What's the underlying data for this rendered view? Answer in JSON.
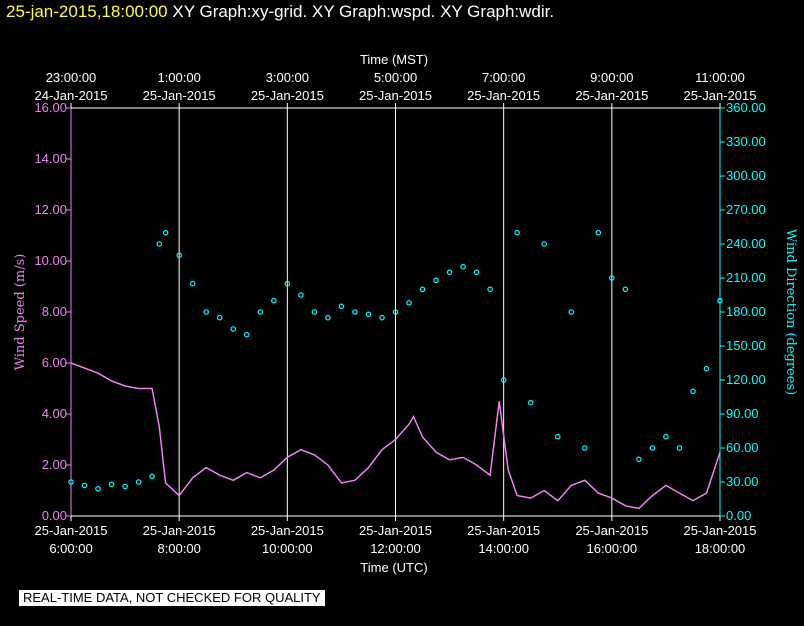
{
  "header": {
    "timestamp": "25-jan-2015,18:00:00",
    "graphs": "XY Graph:xy-grid.  XY Graph:wspd.  XY Graph:wdir."
  },
  "notice": "REAL-TIME DATA, NOT CHECKED FOR QUALITY",
  "colors": {
    "speed": "#ee82ee",
    "direction": "#00ffff",
    "axis": "#ffffff",
    "grid": "#ffffff",
    "header_timestamp": "#ffff3c"
  },
  "chart_data": {
    "type": "scatter",
    "top_axis": {
      "label": "Time (MST)",
      "ticks": [
        {
          "time": "23:00:00",
          "date": "24-Jan-2015"
        },
        {
          "time": "1:00:00",
          "date": "25-Jan-2015"
        },
        {
          "time": "3:00:00",
          "date": "25-Jan-2015"
        },
        {
          "time": "5:00:00",
          "date": "25-Jan-2015"
        },
        {
          "time": "7:00:00",
          "date": "25-Jan-2015"
        },
        {
          "time": "9:00:00",
          "date": "25-Jan-2015"
        },
        {
          "time": "11:00:00",
          "date": "25-Jan-2015"
        }
      ]
    },
    "bottom_axis": {
      "label": "Time (UTC)",
      "ticks": [
        {
          "date": "25-Jan-2015",
          "time": "6:00:00"
        },
        {
          "date": "25-Jan-2015",
          "time": "8:00:00"
        },
        {
          "date": "25-Jan-2015",
          "time": "10:00:00"
        },
        {
          "date": "25-Jan-2015",
          "time": "12:00:00"
        },
        {
          "date": "25-Jan-2015",
          "time": "14:00:00"
        },
        {
          "date": "25-Jan-2015",
          "time": "16:00:00"
        },
        {
          "date": "25-Jan-2015",
          "time": "18:00:00"
        }
      ],
      "xlim": [
        "2015-01-25 06:00",
        "2015-01-25 18:00"
      ]
    },
    "left_axis": {
      "label": "Wind Speed (m/s)",
      "ylim": [
        0,
        16
      ],
      "ticks": [
        "0.00",
        "2.00",
        "4.00",
        "6.00",
        "8.00",
        "10.00",
        "12.00",
        "14.00",
        "16.00"
      ]
    },
    "right_axis": {
      "label": "Wind Direction (degrees)",
      "ylim": [
        0,
        360
      ],
      "ticks": [
        "0.00",
        "30.00",
        "60.00",
        "90.00",
        "120.00",
        "150.00",
        "180.00",
        "210.00",
        "240.00",
        "270.00",
        "300.00",
        "330.00",
        "360.00"
      ]
    },
    "grid": "vertical lines at each time tick",
    "series": [
      {
        "name": "Wind Speed",
        "axis": "left",
        "style": "line",
        "points": [
          [
            "06:00",
            6.0
          ],
          [
            "06:15",
            5.8
          ],
          [
            "06:30",
            5.6
          ],
          [
            "06:45",
            5.3
          ],
          [
            "07:00",
            5.1
          ],
          [
            "07:15",
            5.0
          ],
          [
            "07:30",
            5.0
          ],
          [
            "07:38",
            3.5
          ],
          [
            "07:45",
            1.3
          ],
          [
            "08:00",
            0.8
          ],
          [
            "08:15",
            1.5
          ],
          [
            "08:30",
            1.9
          ],
          [
            "08:45",
            1.6
          ],
          [
            "09:00",
            1.4
          ],
          [
            "09:15",
            1.7
          ],
          [
            "09:30",
            1.5
          ],
          [
            "09:45",
            1.8
          ],
          [
            "10:00",
            2.3
          ],
          [
            "10:15",
            2.6
          ],
          [
            "10:30",
            2.4
          ],
          [
            "10:45",
            2.0
          ],
          [
            "11:00",
            1.3
          ],
          [
            "11:15",
            1.4
          ],
          [
            "11:30",
            1.9
          ],
          [
            "11:45",
            2.6
          ],
          [
            "12:00",
            3.0
          ],
          [
            "12:15",
            3.6
          ],
          [
            "12:20",
            3.9
          ],
          [
            "12:30",
            3.1
          ],
          [
            "12:45",
            2.5
          ],
          [
            "13:00",
            2.2
          ],
          [
            "13:15",
            2.3
          ],
          [
            "13:30",
            2.0
          ],
          [
            "13:45",
            1.6
          ],
          [
            "13:55",
            4.5
          ],
          [
            "14:05",
            1.8
          ],
          [
            "14:15",
            0.8
          ],
          [
            "14:30",
            0.7
          ],
          [
            "14:45",
            1.0
          ],
          [
            "15:00",
            0.6
          ],
          [
            "15:15",
            1.2
          ],
          [
            "15:30",
            1.4
          ],
          [
            "15:45",
            0.9
          ],
          [
            "16:00",
            0.7
          ],
          [
            "16:15",
            0.4
          ],
          [
            "16:30",
            0.3
          ],
          [
            "16:45",
            0.8
          ],
          [
            "17:00",
            1.2
          ],
          [
            "17:15",
            0.9
          ],
          [
            "17:30",
            0.6
          ],
          [
            "17:45",
            0.9
          ],
          [
            "18:00",
            2.5
          ]
        ]
      },
      {
        "name": "Wind Direction",
        "axis": "right",
        "style": "markers",
        "points": [
          [
            "06:00",
            30
          ],
          [
            "06:15",
            27
          ],
          [
            "06:30",
            24
          ],
          [
            "06:45",
            28
          ],
          [
            "07:00",
            26
          ],
          [
            "07:15",
            30
          ],
          [
            "07:30",
            35
          ],
          [
            "07:38",
            240
          ],
          [
            "07:45",
            250
          ],
          [
            "08:00",
            230
          ],
          [
            "08:15",
            205
          ],
          [
            "08:30",
            180
          ],
          [
            "08:45",
            175
          ],
          [
            "09:00",
            165
          ],
          [
            "09:15",
            160
          ],
          [
            "09:30",
            180
          ],
          [
            "09:45",
            190
          ],
          [
            "10:00",
            205
          ],
          [
            "10:15",
            195
          ],
          [
            "10:30",
            180
          ],
          [
            "10:45",
            175
          ],
          [
            "11:00",
            185
          ],
          [
            "11:15",
            180
          ],
          [
            "11:30",
            178
          ],
          [
            "11:45",
            175
          ],
          [
            "12:00",
            180
          ],
          [
            "12:15",
            188
          ],
          [
            "12:30",
            200
          ],
          [
            "12:45",
            208
          ],
          [
            "13:00",
            215
          ],
          [
            "13:15",
            220
          ],
          [
            "13:30",
            215
          ],
          [
            "13:45",
            200
          ],
          [
            "14:00",
            120
          ],
          [
            "14:15",
            250
          ],
          [
            "14:30",
            100
          ],
          [
            "14:45",
            240
          ],
          [
            "15:00",
            70
          ],
          [
            "15:15",
            180
          ],
          [
            "15:30",
            60
          ],
          [
            "15:45",
            250
          ],
          [
            "16:00",
            210
          ],
          [
            "16:15",
            200
          ],
          [
            "16:30",
            50
          ],
          [
            "16:45",
            60
          ],
          [
            "17:00",
            70
          ],
          [
            "17:15",
            60
          ],
          [
            "17:30",
            110
          ],
          [
            "17:45",
            130
          ],
          [
            "18:00",
            190
          ]
        ]
      }
    ]
  }
}
